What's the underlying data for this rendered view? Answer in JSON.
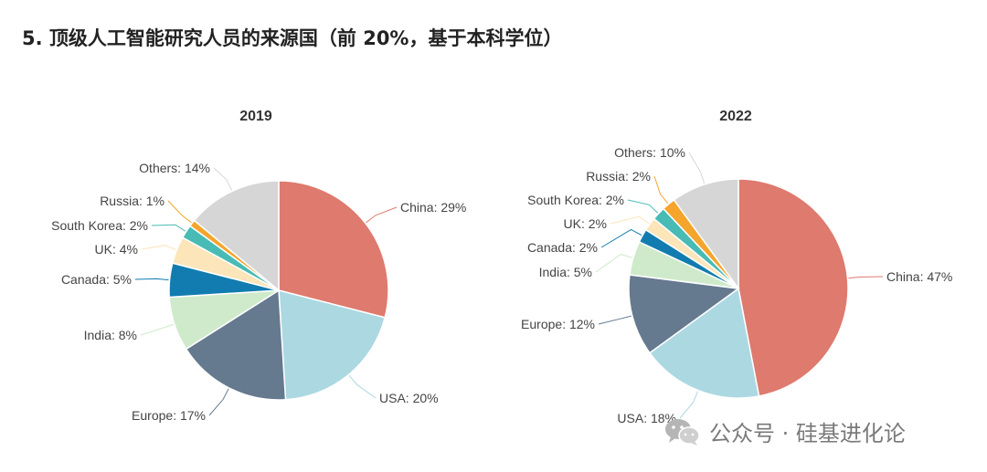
{
  "heading": "5. 顶级人工智能研究人员的来源国（前 20%，基于本科学位）",
  "watermark": "公众号 · 硅基进化论",
  "watermark_icon": "wechat-icon",
  "chart_data": [
    {
      "type": "pie",
      "title": "2019",
      "slices": [
        {
          "name": "China",
          "value": 29,
          "label": "China: 29%",
          "color": "#de7a6e"
        },
        {
          "name": "USA",
          "value": 20,
          "label": "USA: 20%",
          "color": "#acd8e2"
        },
        {
          "name": "Europe",
          "value": 17,
          "label": "Europe: 17%",
          "color": "#65798f"
        },
        {
          "name": "India",
          "value": 8,
          "label": "India: 8%",
          "color": "#cfeacb"
        },
        {
          "name": "Canada",
          "value": 5,
          "label": "Canada: 5%",
          "color": "#127cb0"
        },
        {
          "name": "UK",
          "value": 4,
          "label": "UK: 4%",
          "color": "#fbe5b9"
        },
        {
          "name": "South Korea",
          "value": 2,
          "label": "South Korea: 2%",
          "color": "#48bbb5"
        },
        {
          "name": "Russia",
          "value": 1,
          "label": "Russia: 1%",
          "color": "#f5a42c"
        },
        {
          "name": "Others",
          "value": 14,
          "label": "Others: 14%",
          "color": "#d6d6d6"
        }
      ]
    },
    {
      "type": "pie",
      "title": "2022",
      "slices": [
        {
          "name": "China",
          "value": 47,
          "label": "China: 47%",
          "color": "#de7a6e"
        },
        {
          "name": "USA",
          "value": 18,
          "label": "USA: 18%",
          "color": "#acd8e2"
        },
        {
          "name": "Europe",
          "value": 12,
          "label": "Europe: 12%",
          "color": "#65798f"
        },
        {
          "name": "India",
          "value": 5,
          "label": "India: 5%",
          "color": "#cfeacb"
        },
        {
          "name": "Canada",
          "value": 2,
          "label": "Canada: 2%",
          "color": "#127cb0"
        },
        {
          "name": "UK",
          "value": 2,
          "label": "UK: 2%",
          "color": "#fbe5b9"
        },
        {
          "name": "South Korea",
          "value": 2,
          "label": "South Korea: 2%",
          "color": "#48bbb5"
        },
        {
          "name": "Russia",
          "value": 2,
          "label": "Russia: 2%",
          "color": "#f5a42c"
        },
        {
          "name": "Others",
          "value": 10,
          "label": "Others: 10%",
          "color": "#d6d6d6"
        }
      ]
    }
  ]
}
